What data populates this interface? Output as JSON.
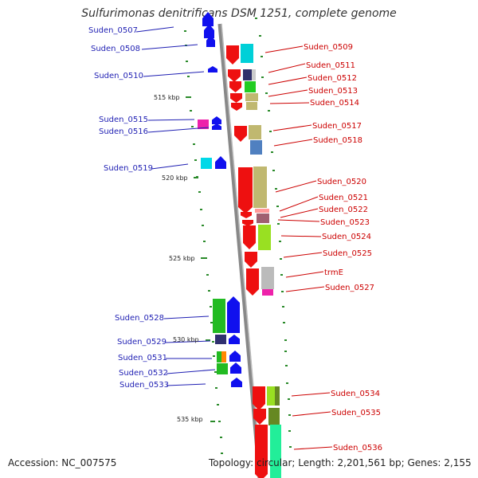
{
  "title": "Sulfurimonas denitrificans DSM 1251, complete genome",
  "footer": {
    "accession": "Accession: NC_007575",
    "topology": "Topology: circular; Length: 2,201,561 bp; Genes: 2,155"
  },
  "kbp_ticks": [
    "515 kbp",
    "520 kbp",
    "525 kbp",
    "530 kbp",
    "535 kbp"
  ],
  "left_genes": [
    "Suden_0507",
    "Suden_0508",
    "Suden_0510",
    "Suden_0515",
    "Suden_0516",
    "Suden_0519",
    "Suden_0528",
    "Suden_0529",
    "Suden_0531",
    "Suden_0532",
    "Suden_0533"
  ],
  "right_genes": [
    "Suden_0509",
    "Suden_0511",
    "Suden_0512",
    "Suden_0513",
    "Suden_0514",
    "Suden_0517",
    "Suden_0518",
    "Suden_0520",
    "Suden_0521",
    "Suden_0522",
    "Suden_0523",
    "Suden_0524",
    "Suden_0525",
    "trmE",
    "Suden_0527",
    "Suden_0534",
    "Suden_0535",
    "Suden_0536"
  ],
  "colors": {
    "left_strand": "#1010ee",
    "right_strand": "#ee1010",
    "label_left": "#1f1fb3",
    "label_right": "#cc0000",
    "backbone": "#888888",
    "tick": "#2a8a2a"
  }
}
